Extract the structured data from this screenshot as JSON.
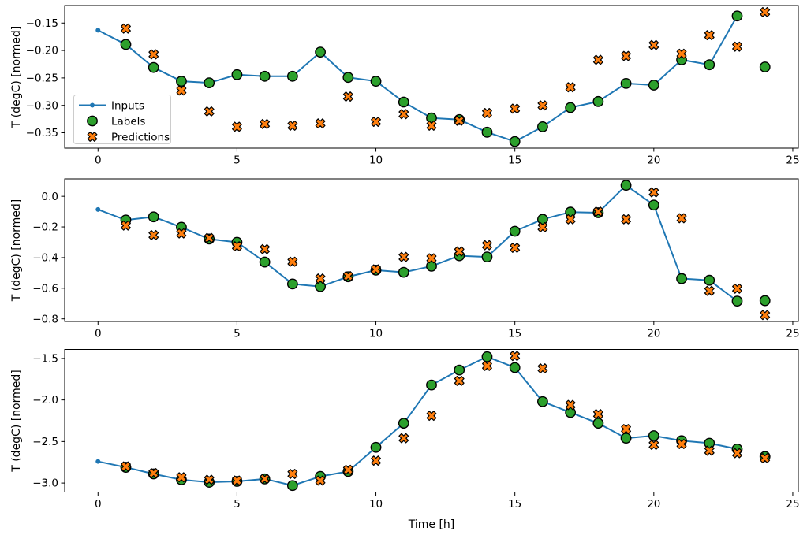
{
  "figure": {
    "background": "#ffffff",
    "xlabel": "Time [h]",
    "ylabel": "T (degC) [normed]"
  },
  "colors": {
    "inputs": "#1f77b4",
    "labels": "#2ca02c",
    "predictions": "#ff7f0e",
    "marker_edge": "#000000",
    "axis": "#000000",
    "legend_border": "#cccccc",
    "legend_bg": "#ffffff"
  },
  "legend": {
    "items": [
      {
        "label": "Inputs",
        "marker": "line-dot",
        "color": "#1f77b4"
      },
      {
        "label": "Labels",
        "marker": "circle",
        "color": "#2ca02c"
      },
      {
        "label": "Predictions",
        "marker": "x",
        "color": "#ff7f0e"
      }
    ]
  },
  "chart_data": [
    {
      "type": "line",
      "title": "",
      "xlabel": "",
      "ylabel": "T (degC) [normed]",
      "xlim": [
        -1.2,
        25.2
      ],
      "ylim": [
        -0.378,
        -0.118
      ],
      "xticks": [
        0,
        5,
        10,
        15,
        20,
        25
      ],
      "xtick_labels": [
        "0",
        "5",
        "10",
        "15",
        "20",
        "25"
      ],
      "yticks": [
        -0.15,
        -0.2,
        -0.25,
        -0.3,
        -0.35
      ],
      "ytick_labels": [
        "−0.15",
        "−0.20",
        "−0.25",
        "−0.30",
        "−0.35"
      ],
      "grid": false,
      "legend_visible": true,
      "legend_position": "center-left",
      "series": [
        {
          "name": "Inputs",
          "type": "line",
          "marker": "dot",
          "color": "#1f77b4",
          "x": [
            0,
            1,
            2,
            3,
            4,
            5,
            6,
            7,
            8,
            9,
            10,
            11,
            12,
            13,
            14,
            15,
            16,
            17,
            18,
            19,
            20,
            21,
            22,
            23
          ],
          "y": [
            -0.163,
            -0.189,
            -0.231,
            -0.256,
            -0.259,
            -0.244,
            -0.247,
            -0.247,
            -0.203,
            -0.249,
            -0.256,
            -0.294,
            -0.323,
            -0.326,
            -0.349,
            -0.366,
            -0.339,
            -0.304,
            -0.293,
            -0.26,
            -0.263,
            -0.217,
            -0.226,
            -0.137
          ]
        },
        {
          "name": "Labels",
          "type": "scatter",
          "marker": "circle",
          "color": "#2ca02c",
          "edge": "#000000",
          "x": [
            1,
            2,
            3,
            4,
            5,
            6,
            7,
            8,
            9,
            10,
            11,
            12,
            13,
            14,
            15,
            16,
            17,
            18,
            19,
            20,
            21,
            22,
            23,
            24
          ],
          "y": [
            -0.189,
            -0.231,
            -0.256,
            -0.259,
            -0.244,
            -0.247,
            -0.247,
            -0.203,
            -0.249,
            -0.256,
            -0.294,
            -0.323,
            -0.326,
            -0.349,
            -0.366,
            -0.339,
            -0.304,
            -0.293,
            -0.26,
            -0.263,
            -0.217,
            -0.226,
            -0.137,
            -0.23
          ]
        },
        {
          "name": "Predictions",
          "type": "scatter",
          "marker": "X",
          "color": "#ff7f0e",
          "edge": "#000000",
          "x": [
            1,
            2,
            3,
            4,
            5,
            6,
            7,
            8,
            9,
            10,
            11,
            12,
            13,
            14,
            15,
            16,
            17,
            18,
            19,
            20,
            21,
            22,
            23,
            24
          ],
          "y": [
            -0.16,
            -0.207,
            -0.273,
            -0.311,
            -0.339,
            -0.334,
            -0.337,
            -0.333,
            -0.284,
            -0.33,
            -0.316,
            -0.337,
            -0.328,
            -0.314,
            -0.306,
            -0.3,
            -0.267,
            -0.217,
            -0.21,
            -0.19,
            -0.206,
            -0.172,
            -0.193,
            -0.13
          ]
        }
      ]
    },
    {
      "type": "line",
      "title": "",
      "xlabel": "",
      "ylabel": "T (degC) [normed]",
      "xlim": [
        -1.2,
        25.2
      ],
      "ylim": [
        -0.817,
        0.114
      ],
      "xticks": [
        0,
        5,
        10,
        15,
        20,
        25
      ],
      "xtick_labels": [
        "0",
        "5",
        "10",
        "15",
        "20",
        "25"
      ],
      "yticks": [
        0.0,
        -0.2,
        -0.4,
        -0.6,
        -0.8
      ],
      "ytick_labels": [
        "0.0",
        "−0.2",
        "−0.4",
        "−0.6",
        "−0.8"
      ],
      "grid": false,
      "legend_visible": false,
      "series": [
        {
          "name": "Inputs",
          "type": "line",
          "marker": "dot",
          "color": "#1f77b4",
          "x": [
            0,
            1,
            2,
            3,
            4,
            5,
            6,
            7,
            8,
            9,
            10,
            11,
            12,
            13,
            14,
            15,
            16,
            17,
            18,
            19,
            20,
            21,
            22,
            23
          ],
          "y": [
            -0.086,
            -0.155,
            -0.134,
            -0.202,
            -0.279,
            -0.3,
            -0.429,
            -0.572,
            -0.589,
            -0.525,
            -0.482,
            -0.496,
            -0.456,
            -0.388,
            -0.396,
            -0.228,
            -0.15,
            -0.103,
            -0.107,
            0.072,
            -0.057,
            -0.537,
            -0.548,
            -0.684
          ]
        },
        {
          "name": "Labels",
          "type": "scatter",
          "marker": "circle",
          "color": "#2ca02c",
          "edge": "#000000",
          "x": [
            1,
            2,
            3,
            4,
            5,
            6,
            7,
            8,
            9,
            10,
            11,
            12,
            13,
            14,
            15,
            16,
            17,
            18,
            19,
            20,
            21,
            22,
            23,
            24
          ],
          "y": [
            -0.155,
            -0.134,
            -0.202,
            -0.279,
            -0.3,
            -0.429,
            -0.572,
            -0.589,
            -0.525,
            -0.482,
            -0.496,
            -0.456,
            -0.388,
            -0.396,
            -0.228,
            -0.15,
            -0.103,
            -0.107,
            0.072,
            -0.057,
            -0.537,
            -0.548,
            -0.684,
            -0.681
          ]
        },
        {
          "name": "Predictions",
          "type": "scatter",
          "marker": "X",
          "color": "#ff7f0e",
          "edge": "#000000",
          "x": [
            1,
            2,
            3,
            4,
            5,
            6,
            7,
            8,
            9,
            10,
            11,
            12,
            13,
            14,
            15,
            16,
            17,
            18,
            19,
            20,
            21,
            22,
            23,
            24
          ],
          "y": [
            -0.191,
            -0.253,
            -0.242,
            -0.272,
            -0.326,
            -0.345,
            -0.427,
            -0.537,
            -0.521,
            -0.477,
            -0.396,
            -0.405,
            -0.36,
            -0.319,
            -0.336,
            -0.202,
            -0.15,
            -0.1,
            -0.15,
            0.026,
            -0.143,
            -0.617,
            -0.603,
            -0.775
          ]
        }
      ]
    },
    {
      "type": "line",
      "title": "",
      "xlabel": "Time [h]",
      "ylabel": "T (degC) [normed]",
      "xlim": [
        -1.2,
        25.2
      ],
      "ylim": [
        -3.108,
        -1.392
      ],
      "xticks": [
        0,
        5,
        10,
        15,
        20,
        25
      ],
      "xtick_labels": [
        "0",
        "5",
        "10",
        "15",
        "20",
        "25"
      ],
      "yticks": [
        -1.5,
        -2.0,
        -2.5,
        -3.0
      ],
      "ytick_labels": [
        "−1.5",
        "−2.0",
        "−2.5",
        "−3.0"
      ],
      "grid": false,
      "legend_visible": false,
      "series": [
        {
          "name": "Inputs",
          "type": "line",
          "marker": "dot",
          "color": "#1f77b4",
          "x": [
            0,
            1,
            2,
            3,
            4,
            5,
            6,
            7,
            8,
            9,
            10,
            11,
            12,
            13,
            14,
            15,
            16,
            17,
            18,
            19,
            20,
            21,
            22,
            23
          ],
          "y": [
            -2.74,
            -2.81,
            -2.89,
            -2.96,
            -2.99,
            -2.98,
            -2.95,
            -3.03,
            -2.92,
            -2.86,
            -2.57,
            -2.28,
            -1.82,
            -1.64,
            -1.48,
            -1.61,
            -2.02,
            -2.15,
            -2.28,
            -2.46,
            -2.43,
            -2.49,
            -2.52,
            -2.59
          ]
        },
        {
          "name": "Labels",
          "type": "scatter",
          "marker": "circle",
          "color": "#2ca02c",
          "edge": "#000000",
          "x": [
            1,
            2,
            3,
            4,
            5,
            6,
            7,
            8,
            9,
            10,
            11,
            12,
            13,
            14,
            15,
            16,
            17,
            18,
            19,
            20,
            21,
            22,
            23,
            24
          ],
          "y": [
            -2.81,
            -2.89,
            -2.96,
            -2.99,
            -2.98,
            -2.95,
            -3.03,
            -2.92,
            -2.86,
            -2.57,
            -2.28,
            -1.82,
            -1.64,
            -1.48,
            -1.61,
            -2.02,
            -2.15,
            -2.28,
            -2.46,
            -2.43,
            -2.49,
            -2.52,
            -2.59,
            -2.68
          ]
        },
        {
          "name": "Predictions",
          "type": "scatter",
          "marker": "X",
          "color": "#ff7f0e",
          "edge": "#000000",
          "x": [
            1,
            2,
            3,
            4,
            5,
            6,
            7,
            8,
            9,
            10,
            11,
            12,
            13,
            14,
            15,
            16,
            17,
            18,
            19,
            20,
            21,
            22,
            23,
            24
          ],
          "y": [
            -2.8,
            -2.88,
            -2.93,
            -2.96,
            -2.97,
            -2.95,
            -2.89,
            -2.97,
            -2.84,
            -2.73,
            -2.46,
            -2.19,
            -1.77,
            -1.59,
            -1.47,
            -1.62,
            -2.06,
            -2.17,
            -2.35,
            -2.54,
            -2.53,
            -2.61,
            -2.64,
            -2.7
          ]
        }
      ]
    }
  ]
}
